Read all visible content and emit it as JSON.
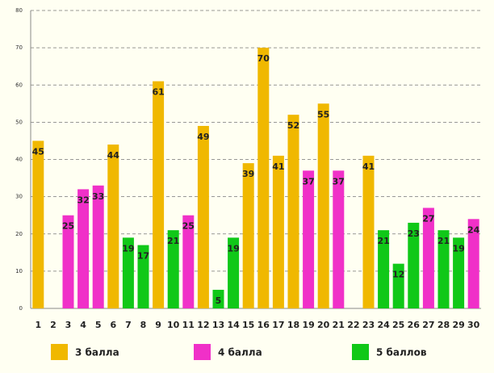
{
  "chart_data": {
    "type": "bar",
    "categories": [
      "1",
      "2",
      "3",
      "4",
      "5",
      "6",
      "7",
      "8",
      "9",
      "10",
      "11",
      "12",
      "13",
      "14",
      "15",
      "16",
      "17",
      "18",
      "19",
      "20",
      "21",
      "22",
      "23",
      "24",
      "25",
      "26",
      "27",
      "28",
      "29",
      "30"
    ],
    "series": [
      {
        "name": "3 балла",
        "color": "#f0b800",
        "values": [
          45,
          null,
          null,
          null,
          null,
          44,
          null,
          null,
          61,
          null,
          null,
          49,
          null,
          null,
          39,
          70,
          41,
          52,
          null,
          55,
          null,
          null,
          41,
          null,
          null,
          null,
          null,
          null,
          null,
          null
        ]
      },
      {
        "name": "4 балла",
        "color": "#f030c8",
        "values": [
          null,
          null,
          25,
          32,
          33,
          null,
          null,
          null,
          null,
          null,
          25,
          null,
          null,
          null,
          null,
          null,
          null,
          null,
          37,
          null,
          37,
          null,
          null,
          null,
          null,
          null,
          27,
          null,
          null,
          24
        ]
      },
      {
        "name": "5 баллов",
        "color": "#10c818",
        "values": [
          null,
          null,
          null,
          null,
          null,
          null,
          19,
          17,
          null,
          21,
          null,
          null,
          5,
          19,
          null,
          null,
          null,
          null,
          null,
          null,
          null,
          null,
          null,
          21,
          12,
          23,
          null,
          21,
          19,
          null
        ]
      }
    ],
    "ylim": [
      0,
      80
    ],
    "yticks": [
      0,
      10,
      20,
      30,
      40,
      50,
      60,
      70,
      80
    ],
    "grid": true,
    "legend": "bottom"
  }
}
